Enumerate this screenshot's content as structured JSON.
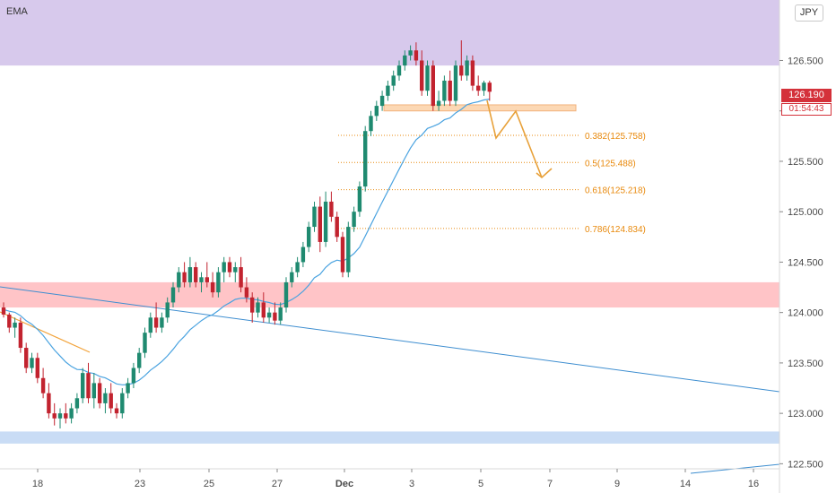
{
  "toolbar": {
    "indicator_label": "EMA",
    "currency_label": "JPY"
  },
  "price_scale": {
    "ticks": [
      "126.500",
      "126.000",
      "125.500",
      "125.000",
      "124.500",
      "124.000",
      "123.500",
      "123.000",
      "122.500"
    ],
    "last_price": "126.190",
    "countdown": "01:54:43"
  },
  "colors": {
    "bull": "#1f8a70",
    "bear": "#c2232f",
    "ema": "#4aa3e0",
    "supply_zone": "#d7c9ec",
    "demand_zone": "#ffc4c7",
    "low_zone": "#c9dcf5",
    "fib": "#e8890c",
    "highlight": "#fcd8b4"
  },
  "chart_data": {
    "type": "candlestick",
    "x_ticks": [
      {
        "label": "18",
        "bold": false
      },
      {
        "label": "23",
        "bold": false
      },
      {
        "label": "25",
        "bold": false
      },
      {
        "label": "27",
        "bold": false
      },
      {
        "label": "Dec",
        "bold": true
      },
      {
        "label": "3",
        "bold": false
      },
      {
        "label": "5",
        "bold": false
      },
      {
        "label": "7",
        "bold": false
      },
      {
        "label": "9",
        "bold": false
      },
      {
        "label": "14",
        "bold": false
      },
      {
        "label": "16",
        "bold": false
      }
    ],
    "ylim": [
      122.45,
      127.1
    ],
    "zones": [
      {
        "name": "supply-zone",
        "from": 126.45,
        "to": 127.1
      },
      {
        "name": "resistance-zone",
        "from": 124.05,
        "to": 124.3
      },
      {
        "name": "low-zone",
        "from": 122.7,
        "to": 122.82
      },
      {
        "name": "entry-zone",
        "from": 126.0,
        "to": 126.06
      }
    ],
    "fib_levels": [
      {
        "ratio": "0.382",
        "price": 125.758,
        "label": "0.382(125.758)"
      },
      {
        "ratio": "0.5",
        "price": 125.488,
        "label": "0.5(125.488)"
      },
      {
        "ratio": "0.618",
        "price": 125.218,
        "label": "0.618(125.218)"
      },
      {
        "ratio": "0.786",
        "price": 124.834,
        "label": "0.786(124.834)"
      }
    ],
    "last_price": 126.19,
    "candles_ohlc": [
      [
        124.05,
        124.1,
        123.95,
        123.98
      ],
      [
        123.98,
        124.0,
        123.8,
        123.85
      ],
      [
        123.85,
        123.95,
        123.75,
        123.9
      ],
      [
        123.9,
        123.95,
        123.6,
        123.65
      ],
      [
        123.65,
        123.7,
        123.4,
        123.45
      ],
      [
        123.45,
        123.6,
        123.4,
        123.55
      ],
      [
        123.55,
        123.6,
        123.3,
        123.35
      ],
      [
        123.35,
        123.45,
        123.15,
        123.2
      ],
      [
        123.2,
        123.3,
        122.95,
        123.0
      ],
      [
        123.0,
        123.1,
        122.88,
        122.95
      ],
      [
        122.95,
        123.05,
        122.85,
        123.0
      ],
      [
        123.0,
        123.1,
        122.9,
        122.95
      ],
      [
        122.95,
        123.1,
        122.9,
        123.05
      ],
      [
        123.05,
        123.2,
        123.0,
        123.15
      ],
      [
        123.15,
        123.45,
        123.1,
        123.4
      ],
      [
        123.4,
        123.5,
        123.1,
        123.15
      ],
      [
        123.15,
        123.4,
        123.05,
        123.3
      ],
      [
        123.3,
        123.35,
        123.05,
        123.1
      ],
      [
        123.1,
        123.25,
        123.0,
        123.2
      ],
      [
        123.2,
        123.3,
        123.0,
        123.05
      ],
      [
        123.05,
        123.1,
        122.95,
        123.0
      ],
      [
        123.0,
        123.25,
        122.95,
        123.2
      ],
      [
        123.2,
        123.35,
        123.15,
        123.3
      ],
      [
        123.3,
        123.5,
        123.25,
        123.45
      ],
      [
        123.45,
        123.65,
        123.4,
        123.6
      ],
      [
        123.6,
        123.85,
        123.55,
        123.8
      ],
      [
        123.8,
        124.0,
        123.75,
        123.95
      ],
      [
        123.95,
        124.1,
        123.8,
        123.85
      ],
      [
        123.85,
        124.0,
        123.8,
        123.95
      ],
      [
        123.95,
        124.15,
        123.9,
        124.1
      ],
      [
        124.1,
        124.3,
        124.05,
        124.25
      ],
      [
        124.25,
        124.45,
        124.2,
        124.4
      ],
      [
        124.4,
        124.5,
        124.25,
        124.3
      ],
      [
        124.3,
        124.55,
        124.25,
        124.45
      ],
      [
        124.45,
        124.5,
        124.25,
        124.3
      ],
      [
        124.3,
        124.4,
        124.2,
        124.35
      ],
      [
        124.35,
        124.5,
        124.25,
        124.3
      ],
      [
        124.3,
        124.4,
        124.15,
        124.2
      ],
      [
        124.2,
        124.45,
        124.15,
        124.4
      ],
      [
        124.4,
        124.55,
        124.3,
        124.5
      ],
      [
        124.5,
        124.55,
        124.35,
        124.4
      ],
      [
        124.4,
        124.5,
        124.3,
        124.45
      ],
      [
        124.45,
        124.55,
        124.2,
        124.25
      ],
      [
        124.25,
        124.35,
        124.1,
        124.15
      ],
      [
        124.15,
        124.2,
        123.9,
        124.0
      ],
      [
        124.0,
        124.15,
        123.95,
        124.1
      ],
      [
        124.1,
        124.2,
        123.9,
        123.95
      ],
      [
        123.95,
        124.05,
        123.9,
        124.0
      ],
      [
        124.0,
        124.1,
        123.88,
        123.92
      ],
      [
        123.92,
        124.1,
        123.88,
        124.05
      ],
      [
        124.05,
        124.35,
        124.0,
        124.3
      ],
      [
        124.3,
        124.45,
        124.25,
        124.4
      ],
      [
        124.4,
        124.55,
        124.35,
        124.5
      ],
      [
        124.5,
        124.7,
        124.45,
        124.65
      ],
      [
        124.65,
        124.9,
        124.6,
        124.85
      ],
      [
        124.85,
        125.1,
        124.8,
        125.05
      ],
      [
        125.05,
        125.15,
        124.6,
        124.7
      ],
      [
        124.7,
        125.2,
        124.65,
        125.1
      ],
      [
        125.1,
        125.2,
        124.9,
        124.95
      ],
      [
        124.95,
        125.0,
        124.7,
        124.75
      ],
      [
        124.75,
        124.8,
        124.35,
        124.4
      ],
      [
        124.4,
        124.9,
        124.35,
        124.85
      ],
      [
        124.85,
        125.05,
        124.8,
        125.0
      ],
      [
        125.0,
        125.3,
        124.95,
        125.25
      ],
      [
        125.25,
        125.85,
        125.2,
        125.8
      ],
      [
        125.8,
        126.0,
        125.75,
        125.95
      ],
      [
        125.95,
        126.1,
        125.9,
        126.05
      ],
      [
        126.05,
        126.2,
        126.0,
        126.15
      ],
      [
        126.15,
        126.3,
        126.1,
        126.25
      ],
      [
        126.25,
        126.4,
        126.2,
        126.35
      ],
      [
        126.35,
        126.5,
        126.3,
        126.45
      ],
      [
        126.45,
        126.6,
        126.4,
        126.55
      ],
      [
        126.55,
        126.65,
        126.5,
        126.6
      ],
      [
        126.6,
        126.68,
        126.45,
        126.5
      ],
      [
        126.5,
        126.6,
        126.15,
        126.2
      ],
      [
        126.2,
        126.5,
        126.15,
        126.45
      ],
      [
        126.45,
        126.5,
        126.0,
        126.05
      ],
      [
        126.05,
        126.2,
        126.0,
        126.1
      ],
      [
        126.1,
        126.35,
        126.05,
        126.3
      ],
      [
        126.3,
        126.4,
        126.05,
        126.1
      ],
      [
        126.1,
        126.5,
        126.05,
        126.45
      ],
      [
        126.45,
        126.7,
        126.3,
        126.35
      ],
      [
        126.35,
        126.55,
        126.3,
        126.5
      ],
      [
        126.5,
        126.55,
        126.2,
        126.25
      ],
      [
        126.25,
        126.35,
        126.15,
        126.2
      ],
      [
        126.2,
        126.3,
        126.15,
        126.28
      ],
      [
        126.28,
        126.3,
        126.1,
        126.19
      ]
    ]
  }
}
